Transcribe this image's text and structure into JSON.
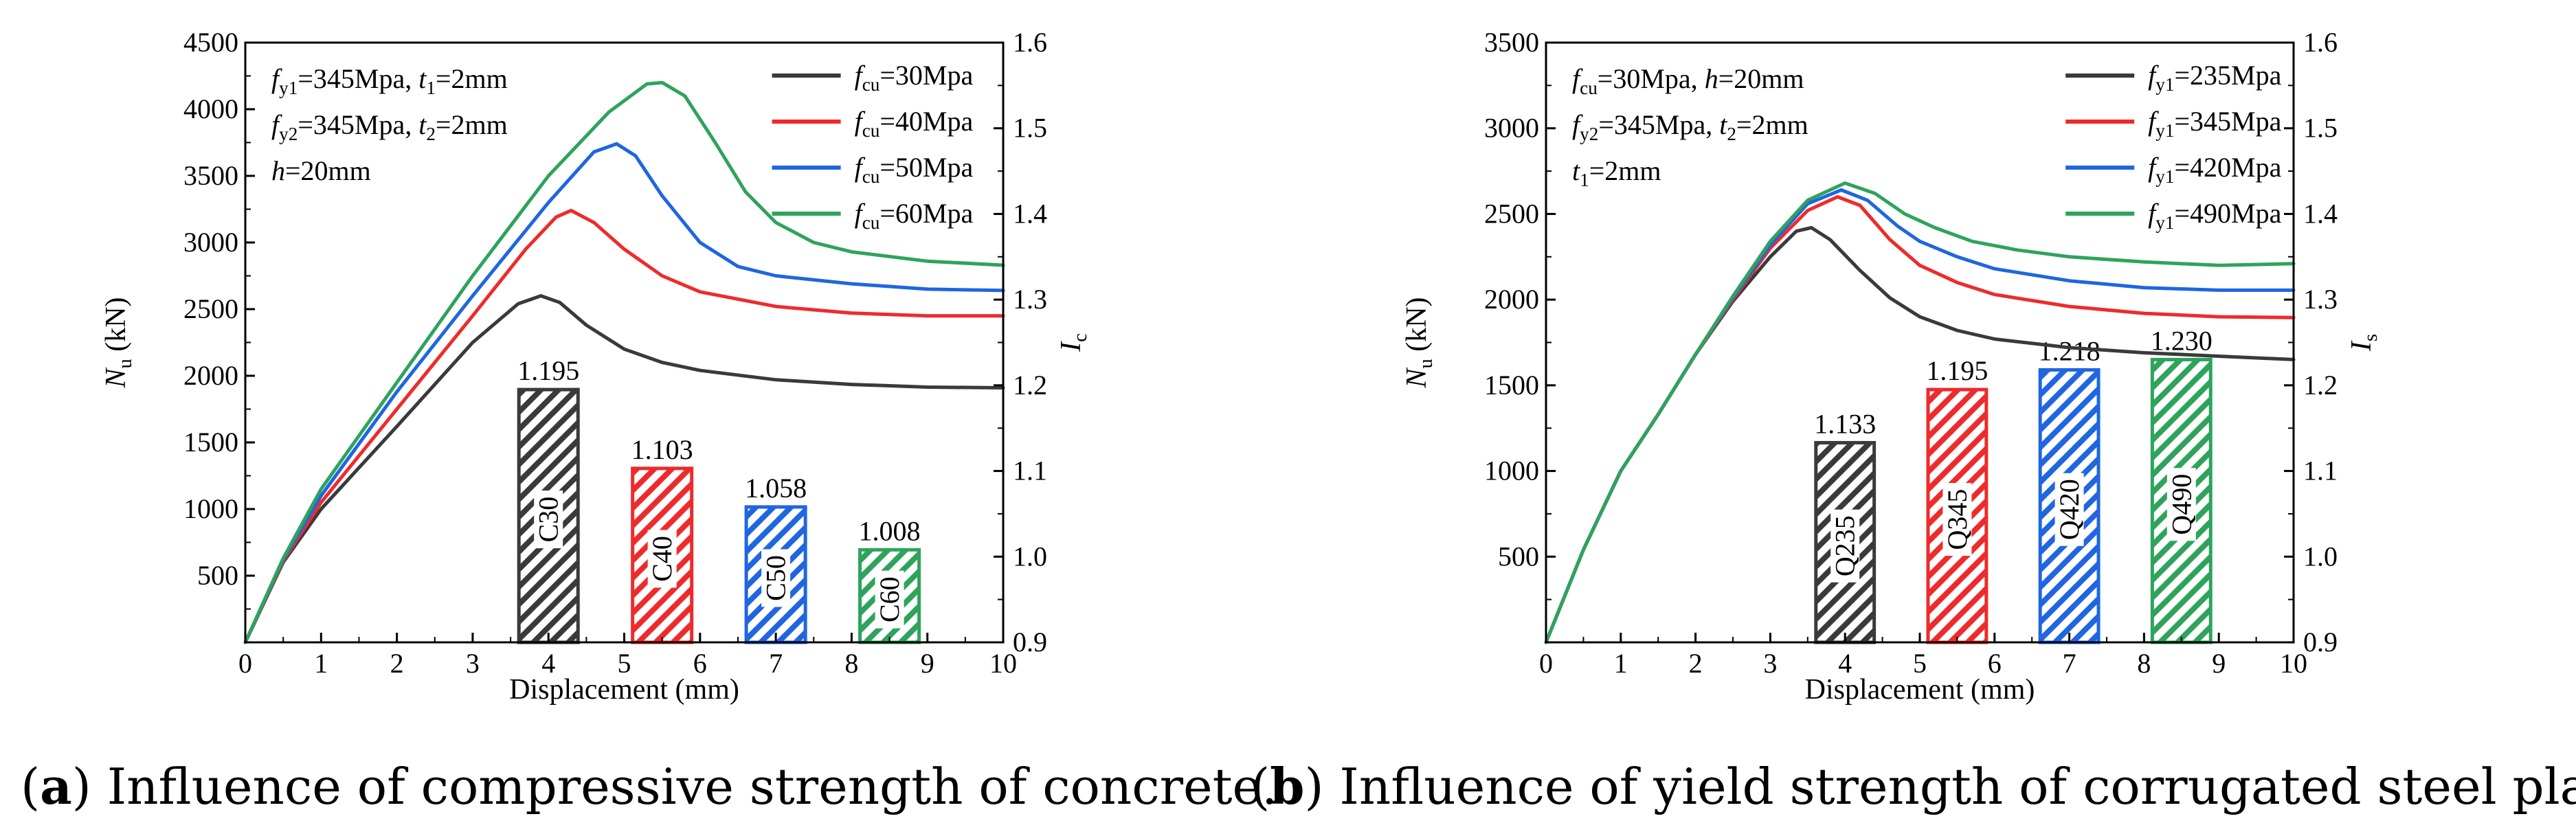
{
  "colors": {
    "c1": "#3a3a3a",
    "c2": "#ee2b2b",
    "c3": "#1f66e0",
    "c4": "#2ea35c"
  },
  "chart_data": [
    {
      "type": "line",
      "caption": {
        "letter": "a",
        "text": ") Influence of compressive strength of concrete."
      },
      "xlabel": "Displacement (mm)",
      "ylabel": {
        "main": "N",
        "sub": "u",
        "rest": " (kN)"
      },
      "y2label": {
        "main": "I",
        "sub": "c"
      },
      "xlim": [
        0,
        10
      ],
      "ylim": [
        0,
        4500
      ],
      "y2lim": [
        0.9,
        1.6
      ],
      "xticks": [
        "0",
        "1",
        "2",
        "3",
        "4",
        "5",
        "6",
        "7",
        "8",
        "9",
        "10"
      ],
      "yticks": [
        "500",
        "1000",
        "1500",
        "2000",
        "2500",
        "3000",
        "3500",
        "4000",
        "4500"
      ],
      "y2ticks": [
        "0.9",
        "1.0",
        "1.1",
        "1.2",
        "1.3",
        "1.4",
        "1.5",
        "1.6"
      ],
      "annotation": [
        [
          {
            "t": "f",
            "i": true
          },
          {
            "t": "y1",
            "sub": true
          },
          {
            "t": "=345Mpa, "
          },
          {
            "t": "t",
            "i": true
          },
          {
            "t": "1",
            "sub": true
          },
          {
            "t": "=2mm"
          }
        ],
        [
          {
            "t": "f",
            "i": true
          },
          {
            "t": "y2",
            "sub": true
          },
          {
            "t": "=345Mpa, "
          },
          {
            "t": "t",
            "i": true
          },
          {
            "t": "2",
            "sub": true
          },
          {
            "t": "=2mm"
          }
        ],
        [
          {
            "t": "h",
            "i": true
          },
          {
            "t": "=20mm"
          }
        ]
      ],
      "series": [
        {
          "name": "fcu=30Mpa",
          "label": {
            "main": "f",
            "sub": "cu",
            "rest": "=30Mpa"
          },
          "color": "#3a3a3a",
          "points": [
            [
              0,
              0
            ],
            [
              0.5,
              600
            ],
            [
              1,
              1000
            ],
            [
              2,
              1620
            ],
            [
              3,
              2250
            ],
            [
              3.6,
              2540
            ],
            [
              3.9,
              2600
            ],
            [
              4.15,
              2550
            ],
            [
              4.5,
              2380
            ],
            [
              5,
              2200
            ],
            [
              5.5,
              2100
            ],
            [
              6,
              2040
            ],
            [
              7,
              1970
            ],
            [
              8,
              1935
            ],
            [
              9,
              1915
            ],
            [
              10,
              1910
            ]
          ]
        },
        {
          "name": "fcu=40Mpa",
          "label": {
            "main": "f",
            "sub": "cu",
            "rest": "=40Mpa"
          },
          "color": "#ee2b2b",
          "points": [
            [
              0,
              0
            ],
            [
              0.5,
              610
            ],
            [
              1,
              1050
            ],
            [
              2,
              1750
            ],
            [
              3,
              2450
            ],
            [
              3.7,
              2950
            ],
            [
              4.1,
              3190
            ],
            [
              4.3,
              3240
            ],
            [
              4.6,
              3150
            ],
            [
              5,
              2950
            ],
            [
              5.5,
              2750
            ],
            [
              6,
              2630
            ],
            [
              7,
              2520
            ],
            [
              8,
              2470
            ],
            [
              9,
              2450
            ],
            [
              10,
              2450
            ]
          ]
        },
        {
          "name": "fcu=50Mpa",
          "label": {
            "main": "f",
            "sub": "cu",
            "rest": "=50Mpa"
          },
          "color": "#1f66e0",
          "points": [
            [
              0,
              0
            ],
            [
              0.5,
              620
            ],
            [
              1,
              1100
            ],
            [
              2,
              1880
            ],
            [
              3,
              2600
            ],
            [
              4,
              3300
            ],
            [
              4.6,
              3680
            ],
            [
              4.9,
              3740
            ],
            [
              5.15,
              3650
            ],
            [
              5.5,
              3350
            ],
            [
              6,
              3000
            ],
            [
              6.5,
              2820
            ],
            [
              7,
              2750
            ],
            [
              8,
              2690
            ],
            [
              9,
              2650
            ],
            [
              10,
              2640
            ]
          ]
        },
        {
          "name": "fcu=60Mpa",
          "label": {
            "main": "f",
            "sub": "cu",
            "rest": "=60Mpa"
          },
          "color": "#2ea35c",
          "points": [
            [
              0,
              0
            ],
            [
              0.5,
              630
            ],
            [
              1,
              1150
            ],
            [
              2,
              1950
            ],
            [
              3,
              2750
            ],
            [
              4,
              3500
            ],
            [
              4.8,
              3980
            ],
            [
              5.3,
              4190
            ],
            [
              5.5,
              4200
            ],
            [
              5.8,
              4100
            ],
            [
              6.2,
              3750
            ],
            [
              6.6,
              3380
            ],
            [
              7,
              3150
            ],
            [
              7.5,
              3000
            ],
            [
              8,
              2930
            ],
            [
              9,
              2860
            ],
            [
              10,
              2830
            ]
          ]
        }
      ],
      "bars": [
        {
          "label": "C30",
          "x": 4.0,
          "value": 1.195,
          "value_text": "1.195",
          "color": "#3a3a3a"
        },
        {
          "label": "C40",
          "x": 5.5,
          "value": 1.103,
          "value_text": "1.103",
          "color": "#ee2b2b"
        },
        {
          "label": "C50",
          "x": 7.0,
          "value": 1.058,
          "value_text": "1.058",
          "color": "#1f66e0"
        },
        {
          "label": "C60",
          "x": 8.5,
          "value": 1.008,
          "value_text": "1.008",
          "color": "#2ea35c"
        }
      ]
    },
    {
      "type": "line",
      "caption": {
        "letter": "b",
        "text": ") Influence of yield strength of corrugated steel plate."
      },
      "xlabel": "Displacement (mm)",
      "ylabel": {
        "main": "N",
        "sub": "u",
        "rest": " (kN)"
      },
      "y2label": {
        "main": "I",
        "sub": "s"
      },
      "xlim": [
        0,
        10
      ],
      "ylim": [
        0,
        3500
      ],
      "y2lim": [
        0.9,
        1.6
      ],
      "xticks": [
        "0",
        "1",
        "2",
        "3",
        "4",
        "5",
        "6",
        "7",
        "8",
        "9",
        "10"
      ],
      "yticks": [
        "500",
        "1000",
        "1500",
        "2000",
        "2500",
        "3000",
        "3500"
      ],
      "y2ticks": [
        "0.9",
        "1.0",
        "1.1",
        "1.2",
        "1.3",
        "1.4",
        "1.5",
        "1.6"
      ],
      "annotation": [
        [
          {
            "t": "f",
            "i": true
          },
          {
            "t": "cu",
            "sub": true
          },
          {
            "t": "=30Mpa, "
          },
          {
            "t": "h",
            "i": true
          },
          {
            "t": "=20mm"
          }
        ],
        [
          {
            "t": "f",
            "i": true
          },
          {
            "t": "y2",
            "sub": true
          },
          {
            "t": "=345Mpa, "
          },
          {
            "t": "t",
            "i": true
          },
          {
            "t": "2",
            "sub": true
          },
          {
            "t": "=2mm"
          }
        ],
        [
          {
            "t": "t",
            "i": true
          },
          {
            "t": "1",
            "sub": true
          },
          {
            "t": "=2mm"
          }
        ]
      ],
      "series": [
        {
          "name": "fy1=235Mpa",
          "label": {
            "main": "f",
            "sub": "y1",
            "rest": "=235Mpa"
          },
          "color": "#3a3a3a",
          "points": [
            [
              0,
              0
            ],
            [
              0.5,
              540
            ],
            [
              1,
              1000
            ],
            [
              1.5,
              1330
            ],
            [
              2,
              1680
            ],
            [
              2.5,
              1990
            ],
            [
              3,
              2250
            ],
            [
              3.35,
              2400
            ],
            [
              3.55,
              2420
            ],
            [
              3.8,
              2350
            ],
            [
              4.2,
              2170
            ],
            [
              4.6,
              2010
            ],
            [
              5,
              1900
            ],
            [
              5.5,
              1820
            ],
            [
              6,
              1770
            ],
            [
              7,
              1720
            ],
            [
              8,
              1690
            ],
            [
              9,
              1670
            ],
            [
              10,
              1650
            ]
          ]
        },
        {
          "name": "fy1=345Mpa",
          "label": {
            "main": "f",
            "sub": "y1",
            "rest": "=345Mpa"
          },
          "color": "#ee2b2b",
          "points": [
            [
              0,
              0
            ],
            [
              0.5,
              540
            ],
            [
              1,
              1000
            ],
            [
              1.5,
              1330
            ],
            [
              2,
              1680
            ],
            [
              2.5,
              2000
            ],
            [
              3,
              2300
            ],
            [
              3.5,
              2520
            ],
            [
              3.9,
              2600
            ],
            [
              4.2,
              2550
            ],
            [
              4.6,
              2350
            ],
            [
              5,
              2200
            ],
            [
              5.5,
              2100
            ],
            [
              6,
              2030
            ],
            [
              7,
              1960
            ],
            [
              8,
              1920
            ],
            [
              9,
              1900
            ],
            [
              10,
              1895
            ]
          ]
        },
        {
          "name": "fy1=420Mpa",
          "label": {
            "main": "f",
            "sub": "y1",
            "rest": "=420Mpa"
          },
          "color": "#1f66e0",
          "points": [
            [
              0,
              0
            ],
            [
              0.5,
              540
            ],
            [
              1,
              1000
            ],
            [
              1.5,
              1330
            ],
            [
              2,
              1680
            ],
            [
              2.5,
              2010
            ],
            [
              3,
              2320
            ],
            [
              3.5,
              2560
            ],
            [
              3.95,
              2640
            ],
            [
              4.3,
              2580
            ],
            [
              4.7,
              2430
            ],
            [
              5,
              2340
            ],
            [
              5.5,
              2250
            ],
            [
              6,
              2180
            ],
            [
              7,
              2110
            ],
            [
              8,
              2070
            ],
            [
              9,
              2055
            ],
            [
              10,
              2055
            ]
          ]
        },
        {
          "name": "fy1=490Mpa",
          "label": {
            "main": "f",
            "sub": "y1",
            "rest": "=490Mpa"
          },
          "color": "#2ea35c",
          "points": [
            [
              0,
              0
            ],
            [
              0.5,
              540
            ],
            [
              1,
              1000
            ],
            [
              1.5,
              1330
            ],
            [
              2,
              1680
            ],
            [
              2.5,
              2020
            ],
            [
              3,
              2340
            ],
            [
              3.5,
              2580
            ],
            [
              4,
              2680
            ],
            [
              4.4,
              2620
            ],
            [
              4.8,
              2500
            ],
            [
              5.2,
              2420
            ],
            [
              5.7,
              2340
            ],
            [
              6.3,
              2290
            ],
            [
              7,
              2250
            ],
            [
              8,
              2220
            ],
            [
              9,
              2200
            ],
            [
              10,
              2210
            ]
          ]
        }
      ],
      "bars": [
        {
          "label": "Q235",
          "x": 4.0,
          "value": 1.133,
          "value_text": "1.133",
          "color": "#3a3a3a"
        },
        {
          "label": "Q345",
          "x": 5.5,
          "value": 1.195,
          "value_text": "1.195",
          "color": "#ee2b2b"
        },
        {
          "label": "Q420",
          "x": 7.0,
          "value": 1.218,
          "value_text": "1.218",
          "color": "#1f66e0"
        },
        {
          "label": "Q490",
          "x": 8.5,
          "value": 1.23,
          "value_text": "1.230",
          "color": "#2ea35c"
        }
      ]
    }
  ]
}
